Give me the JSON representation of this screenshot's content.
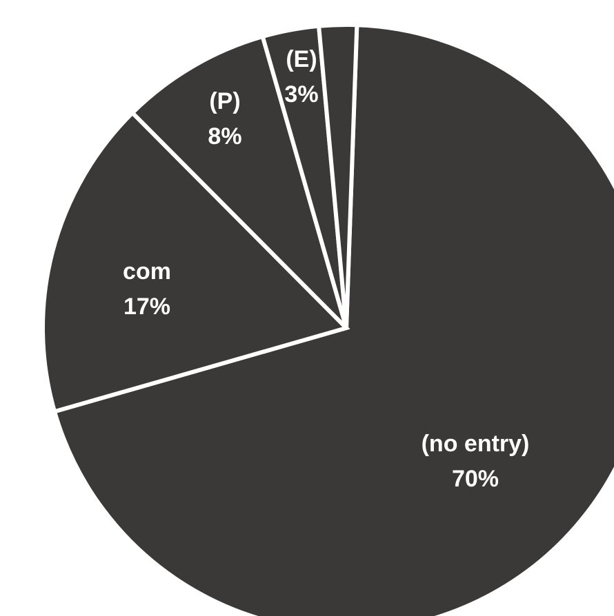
{
  "chart_data": {
    "type": "pie",
    "title": "",
    "start_angle_deg": 2,
    "direction": "clockwise",
    "legend": "none",
    "labels_position": "inside",
    "slice_color": "#3a3938",
    "separator_color": "#ffffff",
    "slices": [
      {
        "category": "(no entry)",
        "value": 70,
        "value_label": "70%"
      },
      {
        "category": "com",
        "value": 17,
        "value_label": "17%"
      },
      {
        "category": "(P)",
        "value": 8,
        "value_label": "8%"
      },
      {
        "category": "(E)",
        "value": 3,
        "value_label": "3%"
      },
      {
        "category": "",
        "value": 2,
        "value_label": ""
      }
    ]
  }
}
